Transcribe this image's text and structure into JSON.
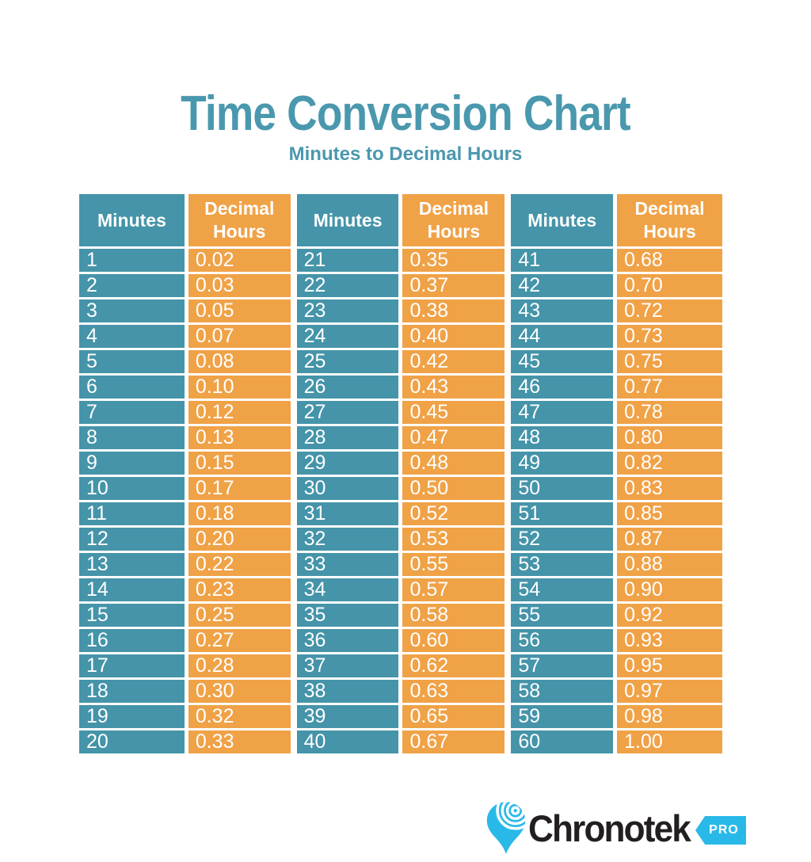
{
  "header": {
    "title": "Time Conversion Chart",
    "subtitle": "Minutes to Decimal Hours",
    "title_color": "#4A98AE"
  },
  "table": {
    "headers": [
      "Minutes",
      "Decimal Hours",
      "Minutes",
      "Decimal Hours",
      "Minutes",
      "Decimal Hours"
    ],
    "colors": {
      "minutes_bg": "#4594A9",
      "decimal_bg": "#F0A247",
      "header_text": "#FFFFFF",
      "cell_text": "#FFFFFF",
      "border": "#FFFFFF"
    },
    "rows": [
      [
        "1",
        "0.02",
        "21",
        "0.35",
        "41",
        "0.68"
      ],
      [
        "2",
        "0.03",
        "22",
        "0.37",
        "42",
        "0.70"
      ],
      [
        "3",
        "0.05",
        "23",
        "0.38",
        "43",
        "0.72"
      ],
      [
        "4",
        "0.07",
        "24",
        "0.40",
        "44",
        "0.73"
      ],
      [
        "5",
        "0.08",
        "25",
        "0.42",
        "45",
        "0.75"
      ],
      [
        "6",
        "0.10",
        "26",
        "0.43",
        "46",
        "0.77"
      ],
      [
        "7",
        "0.12",
        "27",
        "0.45",
        "47",
        "0.78"
      ],
      [
        "8",
        "0.13",
        "28",
        "0.47",
        "48",
        "0.80"
      ],
      [
        "9",
        "0.15",
        "29",
        "0.48",
        "49",
        "0.82"
      ],
      [
        "10",
        "0.17",
        "30",
        "0.50",
        "50",
        "0.83"
      ],
      [
        "11",
        "0.18",
        "31",
        "0.52",
        "51",
        "0.85"
      ],
      [
        "12",
        "0.20",
        "32",
        "0.53",
        "52",
        "0.87"
      ],
      [
        "13",
        "0.22",
        "33",
        "0.55",
        "53",
        "0.88"
      ],
      [
        "14",
        "0.23",
        "34",
        "0.57",
        "54",
        "0.90"
      ],
      [
        "15",
        "0.25",
        "35",
        "0.58",
        "55",
        "0.92"
      ],
      [
        "16",
        "0.27",
        "36",
        "0.60",
        "56",
        "0.93"
      ],
      [
        "17",
        "0.28",
        "37",
        "0.62",
        "57",
        "0.95"
      ],
      [
        "18",
        "0.30",
        "38",
        "0.63",
        "58",
        "0.97"
      ],
      [
        "19",
        "0.32",
        "39",
        "0.65",
        "59",
        "0.98"
      ],
      [
        "20",
        "0.33",
        "40",
        "0.67",
        "60",
        "1.00"
      ]
    ]
  },
  "logo": {
    "wordmark": "Chronotek",
    "badge": "PRO",
    "pin_color": "#29B9E8",
    "badge_color": "#29B9E8",
    "text_color": "#231F20"
  },
  "chart_data": {
    "type": "table",
    "title": "Time Conversion Chart",
    "subtitle": "Minutes to Decimal Hours",
    "columns": [
      "Minutes",
      "Decimal Hours",
      "Minutes",
      "Decimal Hours",
      "Minutes",
      "Decimal Hours"
    ],
    "rows": [
      [
        1,
        0.02,
        21,
        0.35,
        41,
        0.68
      ],
      [
        2,
        0.03,
        22,
        0.37,
        42,
        0.7
      ],
      [
        3,
        0.05,
        23,
        0.38,
        43,
        0.72
      ],
      [
        4,
        0.07,
        24,
        0.4,
        44,
        0.73
      ],
      [
        5,
        0.08,
        25,
        0.42,
        45,
        0.75
      ],
      [
        6,
        0.1,
        26,
        0.43,
        46,
        0.77
      ],
      [
        7,
        0.12,
        27,
        0.45,
        47,
        0.78
      ],
      [
        8,
        0.13,
        28,
        0.47,
        48,
        0.8
      ],
      [
        9,
        0.15,
        29,
        0.48,
        49,
        0.82
      ],
      [
        10,
        0.17,
        30,
        0.5,
        50,
        0.83
      ],
      [
        11,
        0.18,
        31,
        0.52,
        51,
        0.85
      ],
      [
        12,
        0.2,
        32,
        0.53,
        52,
        0.87
      ],
      [
        13,
        0.22,
        33,
        0.55,
        53,
        0.88
      ],
      [
        14,
        0.23,
        34,
        0.57,
        54,
        0.9
      ],
      [
        15,
        0.25,
        35,
        0.58,
        55,
        0.92
      ],
      [
        16,
        0.27,
        36,
        0.6,
        56,
        0.93
      ],
      [
        17,
        0.28,
        37,
        0.62,
        57,
        0.95
      ],
      [
        18,
        0.3,
        38,
        0.63,
        58,
        0.97
      ],
      [
        19,
        0.32,
        39,
        0.65,
        59,
        0.98
      ],
      [
        20,
        0.33,
        40,
        0.67,
        60,
        1.0
      ]
    ]
  }
}
